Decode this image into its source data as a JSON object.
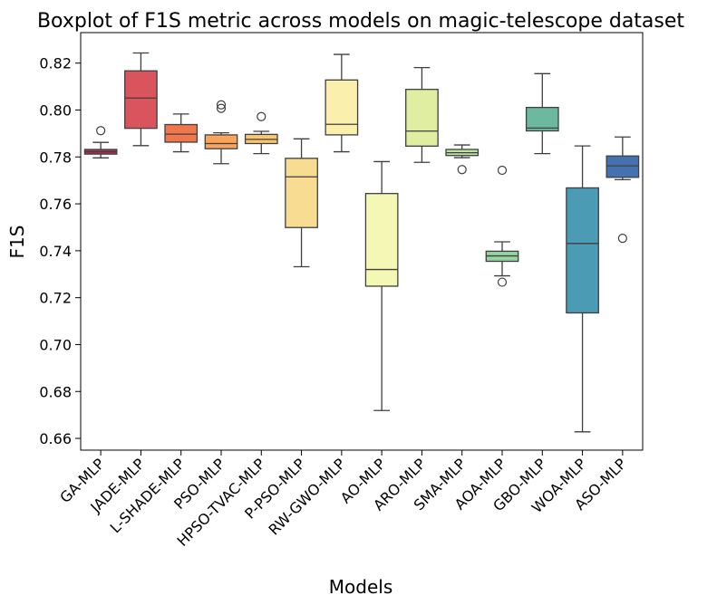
{
  "chart_data": {
    "type": "boxplot",
    "title": "Boxplot of F1S metric across models on magic-telescope dataset",
    "xlabel": "Models",
    "ylabel": "F1S",
    "ylim": [
      0.655,
      0.833
    ],
    "yticks": [
      0.66,
      0.68,
      0.7,
      0.72,
      0.74,
      0.76,
      0.78,
      0.8,
      0.82
    ],
    "ytick_labels": [
      "0.66",
      "0.68",
      "0.70",
      "0.72",
      "0.74",
      "0.76",
      "0.78",
      "0.80",
      "0.82"
    ],
    "grid": false,
    "categories": [
      "GA-MLP",
      "JADE-MLP",
      "L-SHADE-MLP",
      "PSO-MLP",
      "HPSO-TVAC-MLP",
      "P-PSO-MLP",
      "RW-GWO-MLP",
      "AO-MLP",
      "ARO-MLP",
      "SMA-MLP",
      "AOA-MLP",
      "GBO-MLP",
      "WOA-MLP",
      "ASO-MLP"
    ],
    "boxes": [
      {
        "whisker_low": 0.7796,
        "q1": 0.7812,
        "median": 0.7822,
        "q3": 0.7832,
        "whisker_high": 0.7862,
        "outliers": [
          0.7912
        ],
        "color": "#b5304f"
      },
      {
        "whisker_low": 0.7848,
        "q1": 0.7922,
        "median": 0.8051,
        "q3": 0.8167,
        "whisker_high": 0.8243,
        "outliers": [],
        "color": "#d9545c"
      },
      {
        "whisker_low": 0.7822,
        "q1": 0.7863,
        "median": 0.7897,
        "q3": 0.7938,
        "whisker_high": 0.7983,
        "outliers": [],
        "color": "#f0774c"
      },
      {
        "whisker_low": 0.7771,
        "q1": 0.7835,
        "median": 0.7857,
        "q3": 0.7894,
        "whisker_high": 0.7903,
        "outliers": [
          0.8007,
          0.8022
        ],
        "color": "#f9a45c"
      },
      {
        "whisker_low": 0.7814,
        "q1": 0.7857,
        "median": 0.7875,
        "q3": 0.7896,
        "whisker_high": 0.7909,
        "outliers": [
          0.7972
        ],
        "color": "#fcc572"
      },
      {
        "whisker_low": 0.7332,
        "q1": 0.7499,
        "median": 0.7715,
        "q3": 0.7794,
        "whisker_high": 0.7877,
        "outliers": [],
        "color": "#f7dc92"
      },
      {
        "whisker_low": 0.7822,
        "q1": 0.7894,
        "median": 0.7939,
        "q3": 0.8128,
        "whisker_high": 0.8237,
        "outliers": [],
        "color": "#faefad"
      },
      {
        "whisker_low": 0.6719,
        "q1": 0.7249,
        "median": 0.732,
        "q3": 0.7644,
        "whisker_high": 0.778,
        "outliers": [],
        "color": "#f5f7b5"
      },
      {
        "whisker_low": 0.7777,
        "q1": 0.7846,
        "median": 0.791,
        "q3": 0.8088,
        "whisker_high": 0.8181,
        "outliers": [],
        "color": "#dfeea0"
      },
      {
        "whisker_low": 0.7797,
        "q1": 0.7806,
        "median": 0.7818,
        "q3": 0.7832,
        "whisker_high": 0.7851,
        "outliers": [
          0.7746
        ],
        "color": "#bde3a0"
      },
      {
        "whisker_low": 0.7293,
        "q1": 0.7355,
        "median": 0.7378,
        "q3": 0.7398,
        "whisker_high": 0.7438,
        "outliers": [
          0.7266,
          0.7743
        ],
        "color": "#96d3a3"
      },
      {
        "whisker_low": 0.7814,
        "q1": 0.7911,
        "median": 0.7923,
        "q3": 0.8011,
        "whisker_high": 0.8155,
        "outliers": [],
        "color": "#6db99f"
      },
      {
        "whisker_low": 0.6628,
        "q1": 0.7135,
        "median": 0.7431,
        "q3": 0.7668,
        "whisker_high": 0.7847,
        "outliers": [],
        "color": "#4a9bb3"
      },
      {
        "whisker_low": 0.7703,
        "q1": 0.7713,
        "median": 0.7762,
        "q3": 0.7804,
        "whisker_high": 0.7885,
        "outliers": [
          0.7453
        ],
        "color": "#4671b0"
      }
    ]
  }
}
